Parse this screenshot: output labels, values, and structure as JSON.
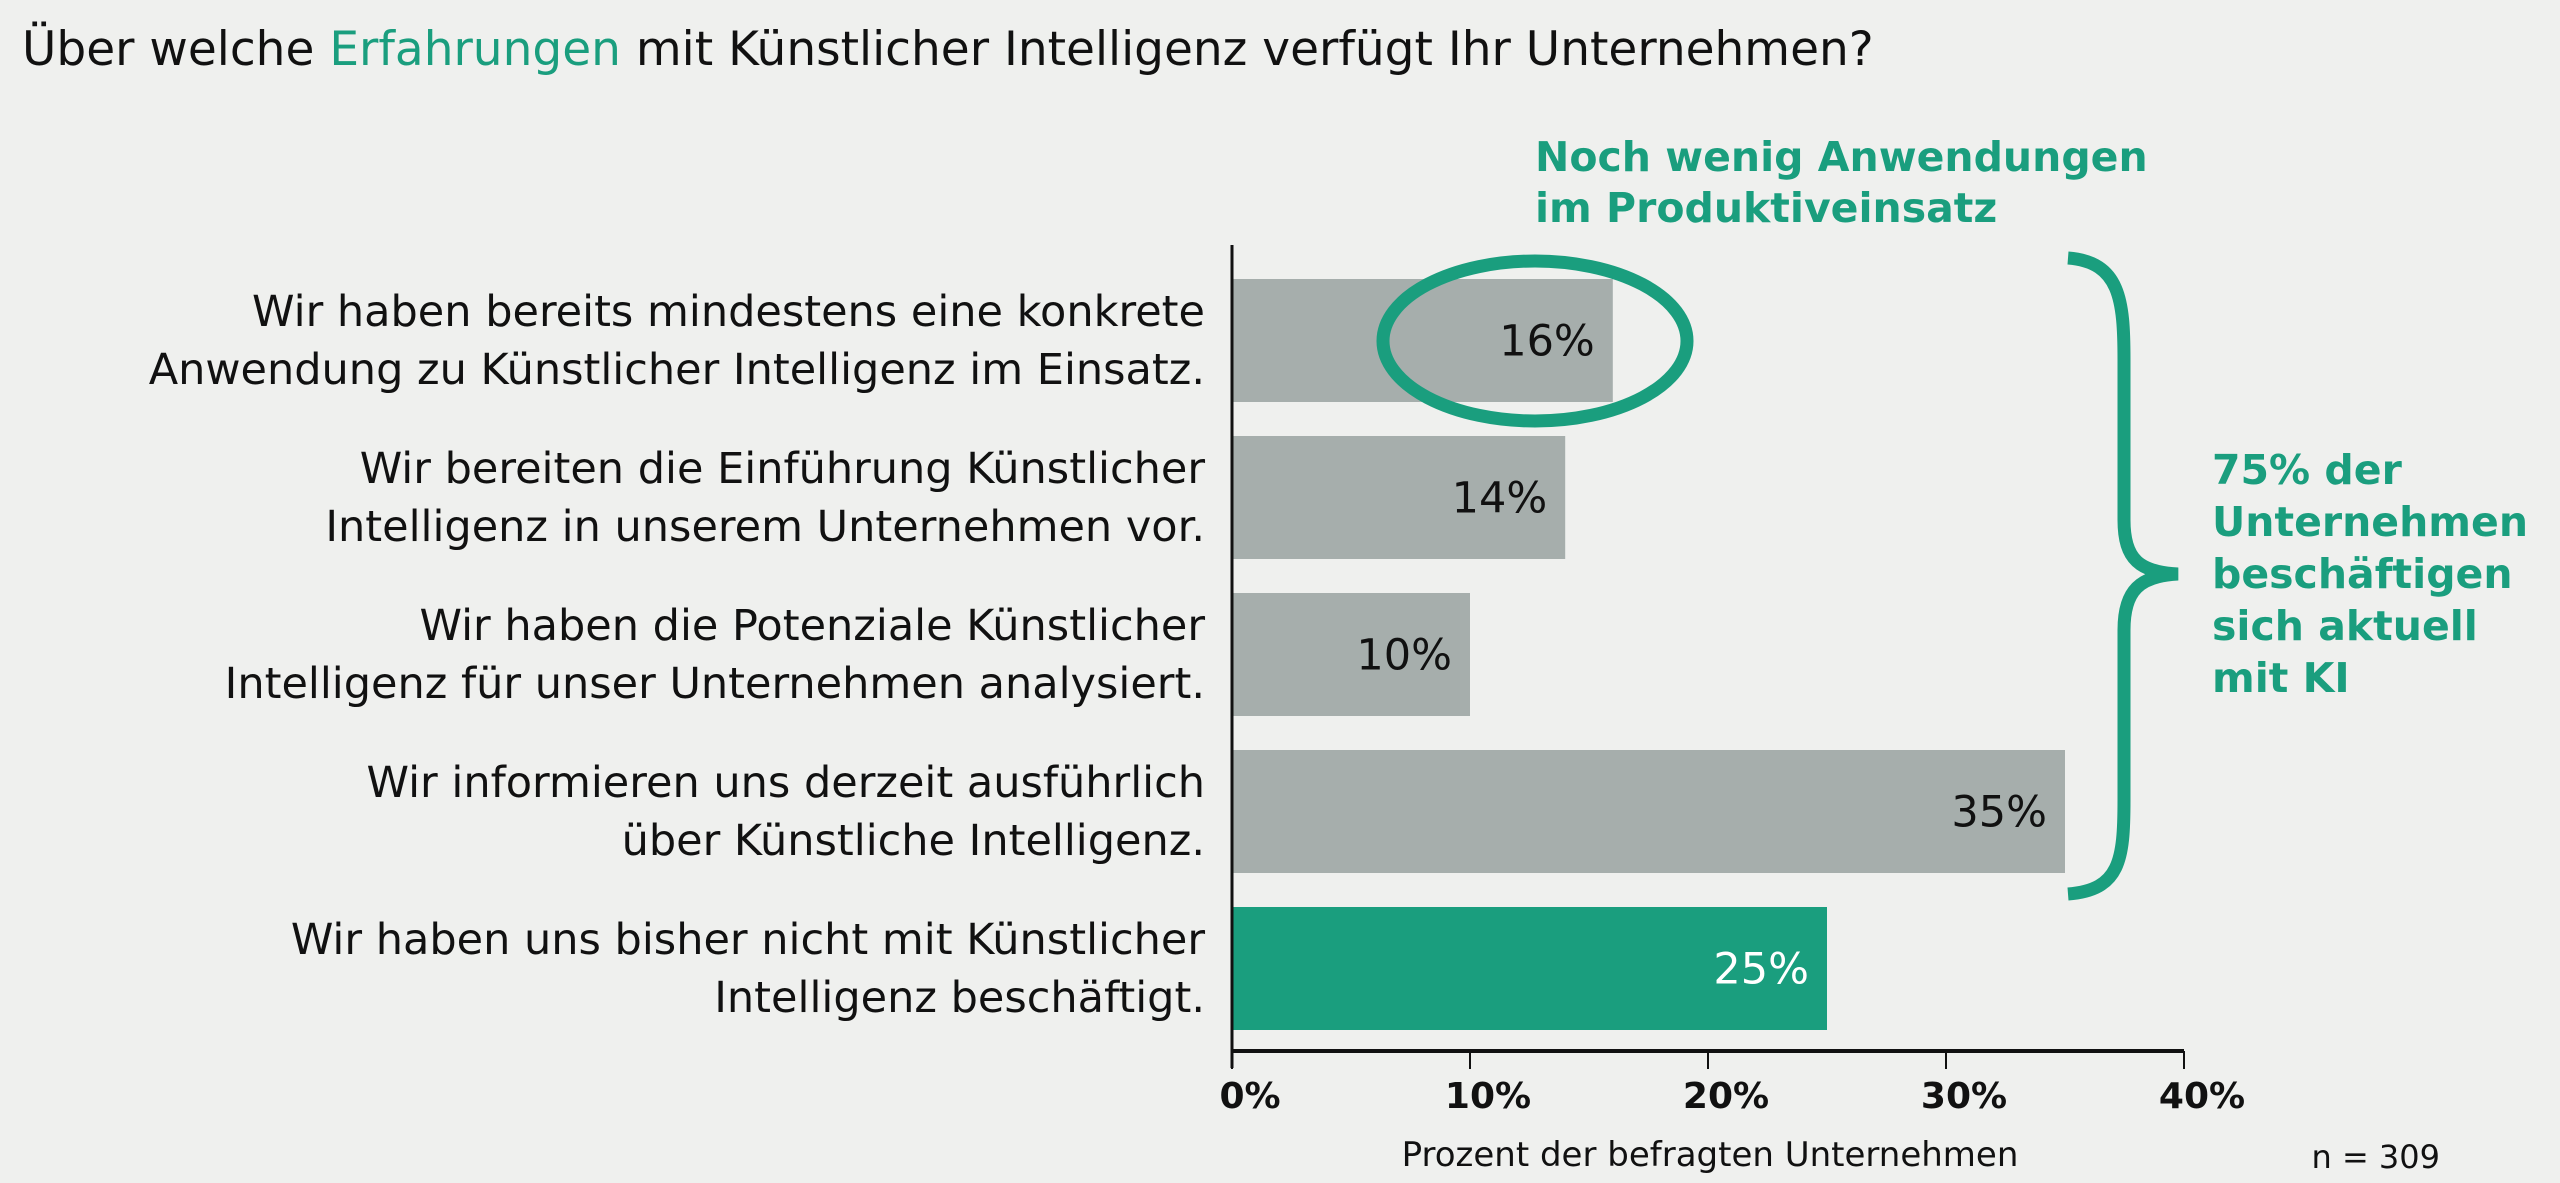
{
  "title": {
    "before": "Über welche ",
    "highlight": "Erfahrungen",
    "after": " mit Künstlicher Intelligenz verfügt Ihr Unternehmen?"
  },
  "colors": {
    "accent": "#1a9e7e",
    "bar_gray": "#a6aeac",
    "background": "#eff0ee"
  },
  "chart_data": {
    "type": "bar",
    "orientation": "horizontal",
    "categories": [
      [
        "Wir haben bereits mindestens eine konkrete",
        "Anwendung zu Künstlicher Intelligenz im Einsatz."
      ],
      [
        "Wir bereiten die Einführung Künstlicher",
        "Intelligenz in unserem Unternehmen vor."
      ],
      [
        "Wir haben die Potenziale Künstlicher",
        "Intelligenz für unser Unternehmen analysiert."
      ],
      [
        "Wir informieren uns derzeit ausführlich",
        "über Künstliche Intelligenz."
      ],
      [
        "Wir haben uns bisher nicht mit Künstlicher",
        "Intelligenz beschäftigt."
      ]
    ],
    "values": [
      16,
      14,
      10,
      35,
      25
    ],
    "data_labels": [
      "16%",
      "14%",
      "10%",
      "35%",
      "25%"
    ],
    "bar_colors": [
      "#a6aeac",
      "#a6aeac",
      "#a6aeac",
      "#a6aeac",
      "#1a9e7e"
    ],
    "xlim": [
      0,
      40
    ],
    "xticks": [
      "0%",
      "10%",
      "20%",
      "30%",
      "40%"
    ],
    "xlabel": "Prozent der befragten Unternehmen",
    "note": "n = 309",
    "annotations": {
      "circle_note": [
        "Noch wenig Anwendungen",
        "im Produktiveinsatz"
      ],
      "brace_note": [
        "75% der",
        "Unternehmen",
        "beschäftigen",
        "sich aktuell",
        "mit KI"
      ]
    }
  }
}
